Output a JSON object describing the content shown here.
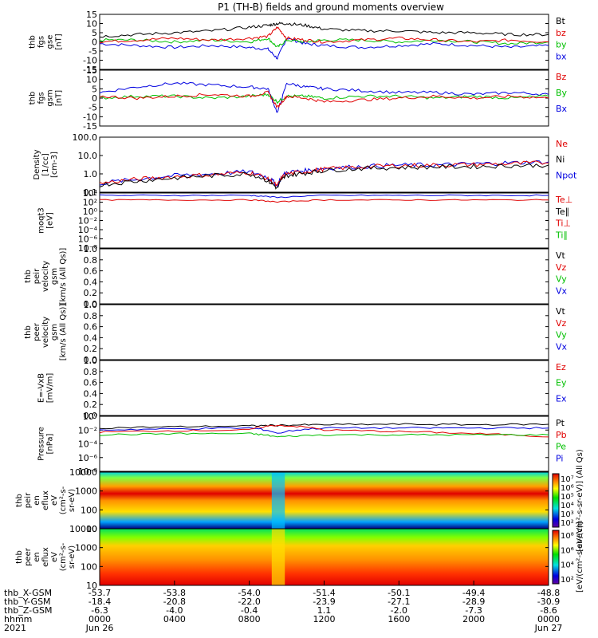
{
  "title": "P1 (TH-B) fields and ground moments overview",
  "colors": {
    "black": "#000000",
    "red": "#e00000",
    "green": "#00c000",
    "blue": "#0000e0"
  },
  "chart_data": [
    {
      "type": "line",
      "ylabel_lines": [
        "thb",
        "fgs",
        "gse",
        "[nT]"
      ],
      "yticks": [
        "15",
        "10",
        "5",
        "0",
        "-5",
        "-10",
        "-15"
      ],
      "ylim": [
        -15,
        15
      ],
      "legend": [
        {
          "label": "Bt",
          "color": "#000000"
        },
        {
          "label": "bz",
          "color": "#e00000"
        },
        {
          "label": "by",
          "color": "#00c000"
        },
        {
          "label": "bx",
          "color": "#0000e0"
        }
      ],
      "series": [
        {
          "name": "bx",
          "color": "#0000e0",
          "x": [
            0,
            2,
            4,
            6,
            8,
            9,
            9.5,
            10,
            11,
            12,
            14,
            16,
            18,
            20,
            22,
            24
          ],
          "values": [
            -1,
            -2,
            -3,
            -2,
            -3,
            -4,
            -9,
            2,
            -1,
            -2,
            -3,
            -2,
            -1,
            -2,
            -3,
            -2
          ]
        },
        {
          "name": "by",
          "color": "#00c000",
          "x": [
            0,
            2,
            4,
            6,
            8,
            9,
            9.5,
            10,
            11,
            12,
            14,
            16,
            18,
            20,
            22,
            24
          ],
          "values": [
            1,
            1,
            0,
            1,
            0,
            2,
            -3,
            1,
            0,
            1,
            1,
            0,
            1,
            0,
            -1,
            0
          ]
        },
        {
          "name": "bz",
          "color": "#e00000",
          "x": [
            0,
            2,
            4,
            6,
            8,
            9,
            9.5,
            10,
            11,
            12,
            14,
            16,
            18,
            20,
            22,
            24
          ],
          "values": [
            0,
            1,
            2,
            1,
            2,
            3,
            8,
            2,
            1,
            0,
            1,
            2,
            1,
            0,
            1,
            0
          ]
        },
        {
          "name": "Bt",
          "color": "#000000",
          "x": [
            0,
            2,
            4,
            6,
            8,
            9,
            9.5,
            10,
            11,
            12,
            14,
            16,
            18,
            20,
            22,
            24
          ],
          "values": [
            3,
            4,
            5,
            6,
            8,
            9,
            10,
            10,
            9,
            7,
            6,
            6,
            5,
            5,
            4,
            4
          ]
        }
      ]
    },
    {
      "type": "line",
      "ylabel_lines": [
        "thb",
        "fgs",
        "gsm",
        "[nT]"
      ],
      "yticks": [
        "15",
        "10",
        "5",
        "0",
        "-5",
        "-10",
        "-15"
      ],
      "ylim": [
        -15,
        15
      ],
      "legend": [
        {
          "label": "Bz",
          "color": "#e00000"
        },
        {
          "label": "By",
          "color": "#00c000"
        },
        {
          "label": "Bx",
          "color": "#0000e0"
        }
      ],
      "series": [
        {
          "name": "Bx",
          "color": "#0000e0",
          "x": [
            0,
            2,
            4,
            6,
            8,
            9,
            9.5,
            10,
            11,
            12,
            14,
            16,
            18,
            20,
            22,
            24
          ],
          "values": [
            3,
            6,
            8,
            7,
            6,
            5,
            -8,
            8,
            6,
            5,
            4,
            3,
            3,
            2,
            3,
            2
          ]
        },
        {
          "name": "By",
          "color": "#00c000",
          "x": [
            0,
            2,
            4,
            6,
            8,
            9,
            9.5,
            10,
            11,
            12,
            14,
            16,
            18,
            20,
            22,
            24
          ],
          "values": [
            0,
            1,
            1,
            0,
            1,
            2,
            -2,
            1,
            1,
            0,
            1,
            1,
            0,
            1,
            0,
            1
          ]
        },
        {
          "name": "Bz",
          "color": "#e00000",
          "x": [
            0,
            2,
            4,
            6,
            8,
            9,
            9.5,
            10,
            11,
            12,
            14,
            16,
            18,
            20,
            22,
            24
          ],
          "values": [
            1,
            0,
            1,
            2,
            1,
            3,
            -5,
            1,
            0,
            -2,
            -1,
            0,
            1,
            0,
            1,
            0
          ]
        }
      ]
    },
    {
      "type": "line",
      "log": true,
      "ylabel_lines": [
        "Density",
        "[1/cc]",
        "[cm-3]"
      ],
      "yticks": [
        "100.0",
        "10.0",
        "1.0",
        "0.1"
      ],
      "ylim": [
        0.1,
        100
      ],
      "legend": [
        {
          "label": "Ne",
          "color": "#e00000"
        },
        {
          "label": "Ni",
          "color": "#000000"
        },
        {
          "label": "Npot",
          "color": "#0000e0"
        }
      ],
      "series": [
        {
          "name": "Npot",
          "color": "#0000e0",
          "x": [
            0,
            2,
            4,
            6,
            8,
            9,
            9.5,
            10,
            11,
            12,
            14,
            16,
            18,
            20,
            22,
            24
          ],
          "values": [
            0.3,
            0.5,
            0.8,
            1.0,
            1.3,
            0.6,
            0.2,
            1.2,
            1.5,
            2.0,
            2.5,
            3.0,
            3.0,
            3.5,
            4.0,
            4.5
          ]
        },
        {
          "name": "Ne",
          "color": "#e00000",
          "x": [
            0,
            2,
            4,
            6,
            8,
            9,
            9.5,
            10,
            11,
            12,
            14,
            16,
            18,
            20,
            22,
            24
          ],
          "values": [
            0.3,
            0.5,
            0.7,
            0.9,
            1.2,
            0.5,
            0.2,
            1.0,
            1.3,
            1.8,
            2.4,
            2.8,
            3.0,
            3.2,
            3.6,
            4.0
          ]
        },
        {
          "name": "Ni",
          "color": "#000000",
          "x": [
            0,
            2,
            4,
            6,
            8,
            9,
            9.5,
            10,
            11,
            12,
            14,
            16,
            18,
            20,
            22,
            24
          ],
          "values": [
            0.25,
            0.4,
            0.6,
            0.8,
            1.0,
            0.4,
            0.15,
            0.8,
            1.1,
            1.5,
            2.0,
            2.2,
            2.4,
            2.5,
            2.8,
            3.0
          ]
        }
      ]
    },
    {
      "type": "line",
      "log": true,
      "ylabel_lines": [
        "moqt3",
        "[eV]"
      ],
      "yticks": [
        "10⁴",
        "10²",
        "10⁰",
        "10⁻²",
        "10⁻⁴",
        "10⁻⁶",
        "10⁻⁸"
      ],
      "ylim": [
        1e-08,
        10000
      ],
      "legend": [
        {
          "label": "Te⊥",
          "color": "#e00000"
        },
        {
          "label": "Te∥",
          "color": "#000000"
        },
        {
          "label": "Ti⊥",
          "color": "#e00000"
        },
        {
          "label": "Ti∥",
          "color": "#00c000"
        }
      ],
      "series": [
        {
          "name": "Ti",
          "color": "#0000e0",
          "x": [
            0,
            4,
            8,
            9.5,
            12,
            16,
            20,
            24
          ],
          "values": [
            3000,
            3000,
            3000,
            1000,
            3000,
            3000,
            3000,
            3000
          ]
        },
        {
          "name": "Te",
          "color": "#e00000",
          "x": [
            0,
            4,
            8,
            9.5,
            12,
            16,
            20,
            24
          ],
          "values": [
            300,
            300,
            300,
            100,
            300,
            300,
            300,
            300
          ]
        }
      ]
    },
    {
      "type": "line",
      "ylabel_lines": [
        "thb",
        "peir",
        "velocity",
        "gsm",
        "[km/s (All Qs)]"
      ],
      "yticks": [
        "1.0",
        "0.8",
        "0.6",
        "0.4",
        "0.2",
        "0.0"
      ],
      "ylim": [
        0,
        1
      ],
      "legend": [
        {
          "label": "Vt",
          "color": "#000000"
        },
        {
          "label": "Vz",
          "color": "#e00000"
        },
        {
          "label": "Vy",
          "color": "#00c000"
        },
        {
          "label": "Vx",
          "color": "#0000e0"
        }
      ],
      "series": []
    },
    {
      "type": "line",
      "ylabel_lines": [
        "thb",
        "peer",
        "velocity",
        "gsm",
        "[km/s (All Qs)]"
      ],
      "yticks": [
        "1.0",
        "0.8",
        "0.6",
        "0.4",
        "0.2",
        "0.0"
      ],
      "ylim": [
        0,
        1
      ],
      "legend": [
        {
          "label": "Vt",
          "color": "#000000"
        },
        {
          "label": "Vz",
          "color": "#e00000"
        },
        {
          "label": "Vy",
          "color": "#00c000"
        },
        {
          "label": "Vx",
          "color": "#0000e0"
        }
      ],
      "series": []
    },
    {
      "type": "line",
      "ylabel_lines": [
        "E=-VxB",
        "[mV/m]"
      ],
      "yticks": [
        "1.0",
        "0.8",
        "0.6",
        "0.4",
        "0.2",
        "0.0"
      ],
      "ylim": [
        0,
        1
      ],
      "legend": [
        {
          "label": "Ez",
          "color": "#e00000"
        },
        {
          "label": "Ey",
          "color": "#00c000"
        },
        {
          "label": "Ex",
          "color": "#0000e0"
        }
      ],
      "series": []
    },
    {
      "type": "line",
      "log": true,
      "ylabel_lines": [
        "Pressure",
        "[nPa]"
      ],
      "yticks": [
        "10⁰",
        "10⁻²",
        "10⁻⁴",
        "10⁻⁶",
        "10⁻⁸"
      ],
      "ylim": [
        1e-08,
        1
      ],
      "legend": [
        {
          "label": "Pt",
          "color": "#000000"
        },
        {
          "label": "Pb",
          "color": "#e00000"
        },
        {
          "label": "Pe",
          "color": "#00c000"
        },
        {
          "label": "Pi",
          "color": "#0000e0"
        }
      ],
      "series": [
        {
          "name": "Pt",
          "color": "#000000",
          "x": [
            0,
            4,
            8,
            9.5,
            12,
            16,
            20,
            24
          ],
          "values": [
            0.02,
            0.03,
            0.04,
            0.05,
            0.06,
            0.07,
            0.06,
            0.07
          ]
        },
        {
          "name": "Pi",
          "color": "#0000e0",
          "x": [
            0,
            4,
            8,
            9.5,
            12,
            16,
            20,
            24
          ],
          "values": [
            0.01,
            0.015,
            0.02,
            0.003,
            0.02,
            0.02,
            0.02,
            0.02
          ]
        },
        {
          "name": "Pb",
          "color": "#e00000",
          "x": [
            0,
            4,
            8,
            9.5,
            12,
            16,
            20,
            24
          ],
          "values": [
            0.005,
            0.008,
            0.01,
            0.05,
            0.01,
            0.006,
            0.003,
            0.001
          ]
        },
        {
          "name": "Pe",
          "color": "#00c000",
          "x": [
            0,
            4,
            8,
            9.5,
            12,
            16,
            20,
            24
          ],
          "values": [
            0.002,
            0.003,
            0.003,
            0.001,
            0.002,
            0.002,
            0.002,
            0.002
          ]
        }
      ]
    },
    {
      "type": "heatmap",
      "ylabel_lines": [
        "thb",
        "peir",
        "en",
        "eflux",
        "eV",
        "(cm²-s-",
        "sr-eV)"
      ],
      "yticks": [
        "10000",
        "1000",
        "100",
        "10"
      ],
      "ylim": [
        5,
        20000
      ],
      "colorbar_ticks": [
        "10⁷",
        "10⁶",
        "10⁵",
        "10⁴",
        "10³",
        "10²"
      ],
      "colorbar_label": "[eV/(cm²-s-sr-eV)] (All Qs)"
    },
    {
      "type": "heatmap",
      "ylabel_lines": [
        "thb",
        "peer",
        "en",
        "eflux",
        "eV",
        "(cm²-s-",
        "sr-eV)"
      ],
      "yticks": [
        "10000",
        "1000",
        "100",
        "10"
      ],
      "ylim": [
        5,
        20000
      ],
      "colorbar_ticks": [
        "10⁸",
        "10⁶",
        "10⁴",
        "10²"
      ],
      "colorbar_label": "[eV/(cm²-s-sr-eV)]"
    }
  ],
  "x_axis": {
    "rows": [
      {
        "label": "thb_X-GSM",
        "values": [
          "-53.7",
          "-53.8",
          "-54.0",
          "-51.4",
          "-50.1",
          "-49.4",
          "-48.8"
        ]
      },
      {
        "label": "thb_Y-GSM",
        "values": [
          "-18.4",
          "-20.8",
          "-22.0",
          "-23.9",
          "-27.1",
          "-28.9",
          "-30.9"
        ]
      },
      {
        "label": "thb_Z-GSM",
        "values": [
          "-6.3",
          "-4.0",
          "-0.4",
          "1.1",
          "-2.0",
          "-7.3",
          "-8.6"
        ]
      },
      {
        "label": "hhmm",
        "values": [
          "0000",
          "0400",
          "0800",
          "1200",
          "1600",
          "2000",
          "0000"
        ]
      },
      {
        "label": "2021",
        "values": [
          "Jun 26",
          "",
          "",
          "",
          "",
          "",
          "Jun 27"
        ]
      }
    ]
  }
}
